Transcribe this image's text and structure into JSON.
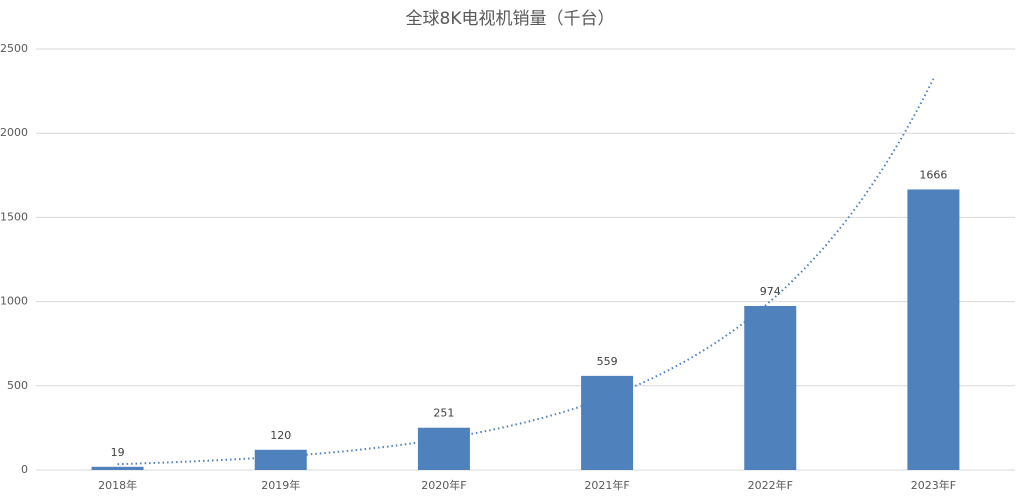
{
  "chart_data": {
    "type": "bar",
    "title": "全球8K电视机销量（千台）",
    "categories": [
      "2018年",
      "2019年",
      "2020年F",
      "2021年F",
      "2022年F",
      "2023年F"
    ],
    "values": [
      19,
      120,
      251,
      559,
      974,
      1666
    ],
    "color": "#4f81bd",
    "trendline": "exponential",
    "trendline_color": "#4f81bd",
    "ylim": [
      0,
      2500
    ],
    "yticks": [
      0,
      500,
      1000,
      1500,
      2000,
      2500
    ],
    "grid": true
  }
}
